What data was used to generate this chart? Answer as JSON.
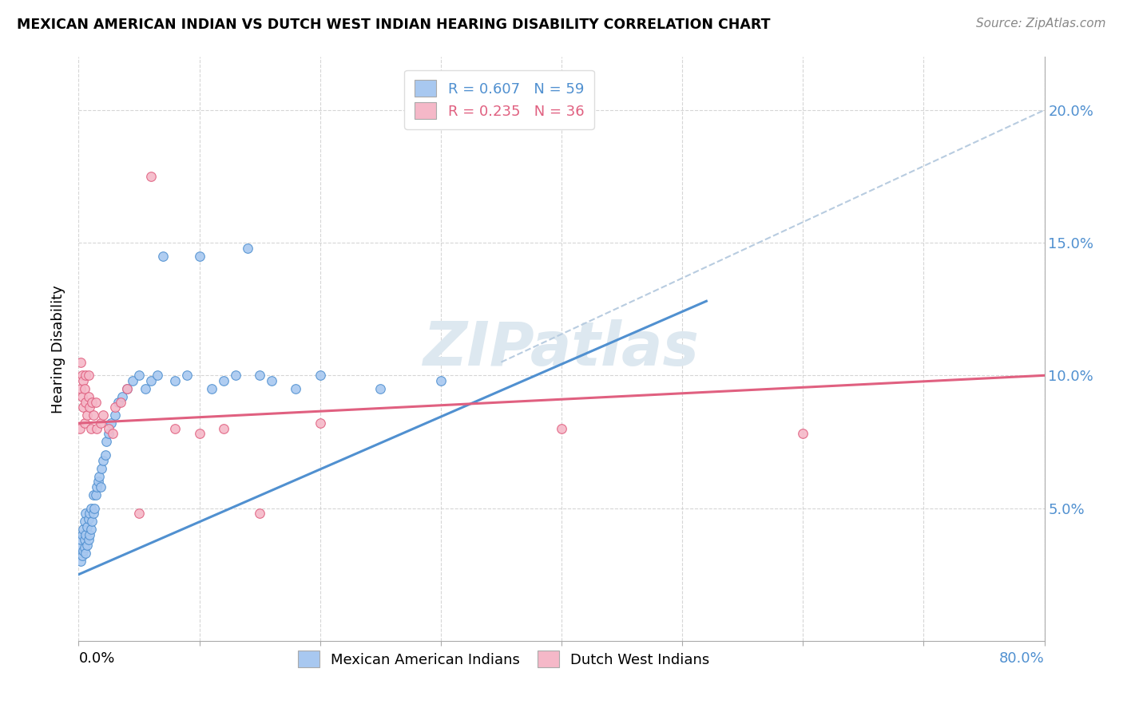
{
  "title": "MEXICAN AMERICAN INDIAN VS DUTCH WEST INDIAN HEARING DISABILITY CORRELATION CHART",
  "source": "Source: ZipAtlas.com",
  "ylabel": "Hearing Disability",
  "xlim": [
    0.0,
    0.8
  ],
  "ylim": [
    0.0,
    0.22
  ],
  "blue_R": 0.607,
  "blue_N": 59,
  "pink_R": 0.235,
  "pink_N": 36,
  "blue_color": "#a8c8f0",
  "pink_color": "#f5b8c8",
  "blue_line_color": "#5090d0",
  "pink_line_color": "#e06080",
  "dashed_line_color": "#b8cce0",
  "watermark": "ZIPatlas",
  "watermark_color": "#dde8f0",
  "legend_label_blue": "Mexican American Indians",
  "legend_label_pink": "Dutch West Indians",
  "blue_scatter_x": [
    0.001,
    0.002,
    0.002,
    0.003,
    0.003,
    0.004,
    0.004,
    0.005,
    0.005,
    0.005,
    0.006,
    0.006,
    0.006,
    0.007,
    0.007,
    0.008,
    0.008,
    0.009,
    0.009,
    0.01,
    0.01,
    0.011,
    0.012,
    0.012,
    0.013,
    0.014,
    0.015,
    0.016,
    0.017,
    0.018,
    0.019,
    0.02,
    0.022,
    0.023,
    0.025,
    0.027,
    0.03,
    0.033,
    0.036,
    0.04,
    0.045,
    0.05,
    0.055,
    0.06,
    0.065,
    0.07,
    0.08,
    0.09,
    0.1,
    0.11,
    0.12,
    0.13,
    0.14,
    0.15,
    0.16,
    0.18,
    0.2,
    0.25,
    0.3
  ],
  "blue_scatter_y": [
    0.035,
    0.03,
    0.038,
    0.032,
    0.04,
    0.034,
    0.042,
    0.035,
    0.038,
    0.045,
    0.033,
    0.04,
    0.048,
    0.036,
    0.043,
    0.038,
    0.046,
    0.04,
    0.048,
    0.042,
    0.05,
    0.045,
    0.048,
    0.055,
    0.05,
    0.055,
    0.058,
    0.06,
    0.062,
    0.058,
    0.065,
    0.068,
    0.07,
    0.075,
    0.078,
    0.082,
    0.085,
    0.09,
    0.092,
    0.095,
    0.098,
    0.1,
    0.095,
    0.098,
    0.1,
    0.145,
    0.098,
    0.1,
    0.145,
    0.095,
    0.098,
    0.1,
    0.148,
    0.1,
    0.098,
    0.095,
    0.1,
    0.095,
    0.098
  ],
  "pink_scatter_x": [
    0.001,
    0.002,
    0.002,
    0.003,
    0.003,
    0.004,
    0.004,
    0.005,
    0.005,
    0.006,
    0.006,
    0.007,
    0.008,
    0.008,
    0.009,
    0.01,
    0.011,
    0.012,
    0.014,
    0.015,
    0.018,
    0.02,
    0.025,
    0.028,
    0.03,
    0.035,
    0.04,
    0.05,
    0.06,
    0.08,
    0.1,
    0.12,
    0.15,
    0.2,
    0.4,
    0.6
  ],
  "pink_scatter_y": [
    0.08,
    0.095,
    0.105,
    0.092,
    0.1,
    0.088,
    0.098,
    0.082,
    0.095,
    0.09,
    0.1,
    0.085,
    0.092,
    0.1,
    0.088,
    0.08,
    0.09,
    0.085,
    0.09,
    0.08,
    0.082,
    0.085,
    0.08,
    0.078,
    0.088,
    0.09,
    0.095,
    0.048,
    0.175,
    0.08,
    0.078,
    0.08,
    0.048,
    0.082,
    0.08,
    0.078
  ],
  "blue_line_x": [
    0.0,
    0.52
  ],
  "blue_line_y_start": 0.025,
  "blue_line_y_end": 0.128,
  "pink_line_x": [
    0.0,
    0.8
  ],
  "pink_line_y_start": 0.082,
  "pink_line_y_end": 0.1,
  "dash_line_x": [
    0.35,
    0.8
  ],
  "dash_line_y_start": 0.105,
  "dash_line_y_end": 0.2,
  "ytick_values": [
    0.05,
    0.1,
    0.15,
    0.2
  ],
  "ytick_labels": [
    "5.0%",
    "10.0%",
    "15.0%",
    "20.0%"
  ],
  "xtick_values": [
    0.0,
    0.1,
    0.2,
    0.3,
    0.4,
    0.5,
    0.6,
    0.7,
    0.8
  ]
}
